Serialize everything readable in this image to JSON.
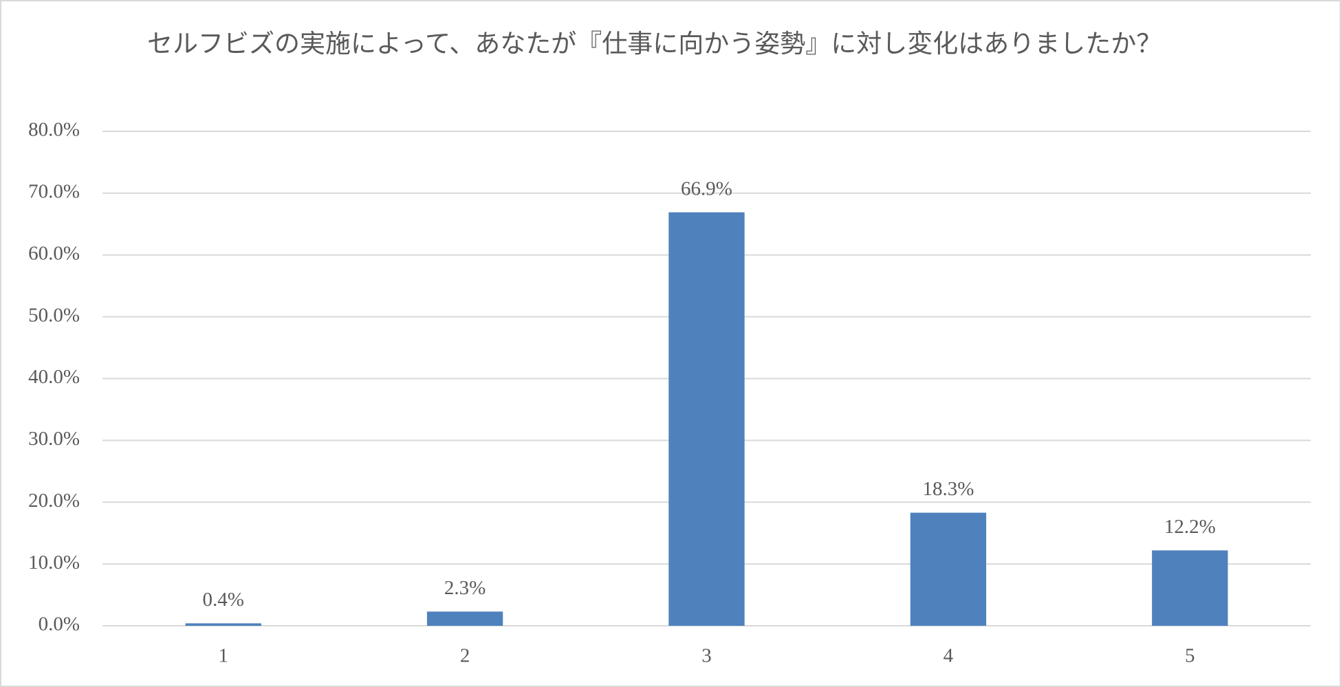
{
  "chart_data": {
    "type": "bar",
    "title": "セルフビズの実施によって、あなたが『仕事に向かう姿勢』に対し変化はありましたか？",
    "categories": [
      "1",
      "2",
      "3",
      "4",
      "5"
    ],
    "values": [
      0.4,
      2.3,
      66.9,
      18.3,
      12.2
    ],
    "value_labels": [
      "0.4%",
      "2.3%",
      "66.9%",
      "18.3%",
      "12.2%"
    ],
    "color": "#4f81bd",
    "ylim": [
      0,
      80
    ],
    "yticks": [
      {
        "value": 0,
        "label": "0.0%"
      },
      {
        "value": 10,
        "label": "10.0%"
      },
      {
        "value": 20,
        "label": "20.0%"
      },
      {
        "value": 30,
        "label": "30.0%"
      },
      {
        "value": 40,
        "label": "40.0%"
      },
      {
        "value": 50,
        "label": "50.0%"
      },
      {
        "value": 60,
        "label": "60.0%"
      },
      {
        "value": 70,
        "label": "70.0%"
      },
      {
        "value": 80,
        "label": "80.0%"
      }
    ],
    "grid": true
  }
}
